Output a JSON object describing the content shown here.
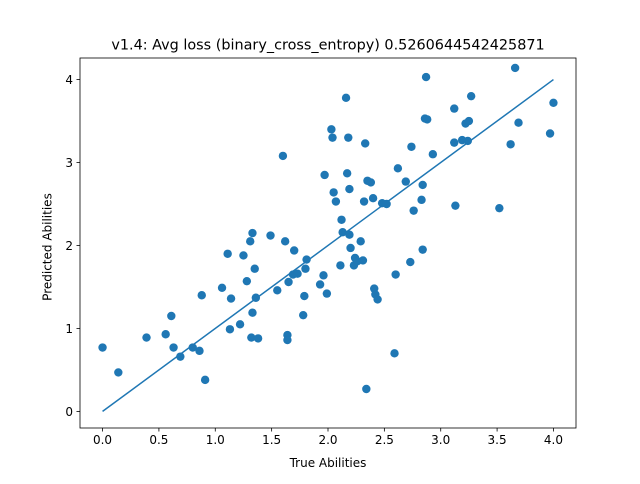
{
  "chart_data": {
    "type": "scatter",
    "title": "v1.4: Avg loss (binary_cross_entropy) 0.5260644542425871",
    "xlabel": "True Abilities",
    "ylabel": "Predicted Abilities",
    "xlim": [
      -0.2,
      4.2
    ],
    "ylim": [
      -0.2,
      4.26
    ],
    "xticks": [
      0.0,
      0.5,
      1.0,
      1.5,
      2.0,
      2.5,
      3.0,
      3.5,
      4.0
    ],
    "xtick_labels": [
      "0.0",
      "0.5",
      "1.0",
      "1.5",
      "2.0",
      "2.5",
      "3.0",
      "3.5",
      "4.0"
    ],
    "yticks": [
      0,
      1,
      2,
      3,
      4
    ],
    "ytick_labels": [
      "0",
      "1",
      "2",
      "3",
      "4"
    ],
    "grid": false,
    "series": [
      {
        "kind": "scatter",
        "color": "#1f77b4",
        "points": [
          [
            0.0,
            0.77
          ],
          [
            0.14,
            0.47
          ],
          [
            0.39,
            0.89
          ],
          [
            0.56,
            0.93
          ],
          [
            0.61,
            1.15
          ],
          [
            0.63,
            0.77
          ],
          [
            0.69,
            0.66
          ],
          [
            0.8,
            0.77
          ],
          [
            0.86,
            0.73
          ],
          [
            0.88,
            1.4
          ],
          [
            0.91,
            0.38
          ],
          [
            1.06,
            1.49
          ],
          [
            1.11,
            1.9
          ],
          [
            1.13,
            0.99
          ],
          [
            1.14,
            1.36
          ],
          [
            1.22,
            1.05
          ],
          [
            1.25,
            1.88
          ],
          [
            1.28,
            1.57
          ],
          [
            1.31,
            2.05
          ],
          [
            1.32,
            0.89
          ],
          [
            1.33,
            1.19
          ],
          [
            1.33,
            2.15
          ],
          [
            1.35,
            1.72
          ],
          [
            1.36,
            1.37
          ],
          [
            1.38,
            0.88
          ],
          [
            1.49,
            2.12
          ],
          [
            1.55,
            1.46
          ],
          [
            1.6,
            3.08
          ],
          [
            1.62,
            2.05
          ],
          [
            1.64,
            0.92
          ],
          [
            1.64,
            0.86
          ],
          [
            1.65,
            1.56
          ],
          [
            1.69,
            1.65
          ],
          [
            1.7,
            1.94
          ],
          [
            1.73,
            1.66
          ],
          [
            1.78,
            1.16
          ],
          [
            1.79,
            1.39
          ],
          [
            1.8,
            1.72
          ],
          [
            1.81,
            1.83
          ],
          [
            1.93,
            1.53
          ],
          [
            1.96,
            1.64
          ],
          [
            1.97,
            2.85
          ],
          [
            1.99,
            1.42
          ],
          [
            2.03,
            3.4
          ],
          [
            2.04,
            3.3
          ],
          [
            2.05,
            2.64
          ],
          [
            2.07,
            2.53
          ],
          [
            2.11,
            1.76
          ],
          [
            2.12,
            2.31
          ],
          [
            2.13,
            2.16
          ],
          [
            2.16,
            3.78
          ],
          [
            2.17,
            2.87
          ],
          [
            2.18,
            3.3
          ],
          [
            2.19,
            2.68
          ],
          [
            2.19,
            2.13
          ],
          [
            2.2,
            1.97
          ],
          [
            2.23,
            1.76
          ],
          [
            2.24,
            1.85
          ],
          [
            2.26,
            1.81
          ],
          [
            2.29,
            2.05
          ],
          [
            2.31,
            1.82
          ],
          [
            2.32,
            2.53
          ],
          [
            2.33,
            3.23
          ],
          [
            2.34,
            0.27
          ],
          [
            2.35,
            2.78
          ],
          [
            2.38,
            2.76
          ],
          [
            2.4,
            2.57
          ],
          [
            2.41,
            1.48
          ],
          [
            2.42,
            1.41
          ],
          [
            2.44,
            1.35
          ],
          [
            2.48,
            2.51
          ],
          [
            2.52,
            2.5
          ],
          [
            2.59,
            0.7
          ],
          [
            2.6,
            1.65
          ],
          [
            2.62,
            2.93
          ],
          [
            2.69,
            2.77
          ],
          [
            2.73,
            1.8
          ],
          [
            2.74,
            3.19
          ],
          [
            2.76,
            2.42
          ],
          [
            2.83,
            2.55
          ],
          [
            2.84,
            1.95
          ],
          [
            2.84,
            2.73
          ],
          [
            2.86,
            3.53
          ],
          [
            2.87,
            4.03
          ],
          [
            2.88,
            3.52
          ],
          [
            2.93,
            3.1
          ],
          [
            3.12,
            3.24
          ],
          [
            3.12,
            3.65
          ],
          [
            3.13,
            2.48
          ],
          [
            3.19,
            3.27
          ],
          [
            3.22,
            3.47
          ],
          [
            3.24,
            3.26
          ],
          [
            3.25,
            3.5
          ],
          [
            3.27,
            3.8
          ],
          [
            3.52,
            2.45
          ],
          [
            3.62,
            3.22
          ],
          [
            3.66,
            4.14
          ],
          [
            3.69,
            3.48
          ],
          [
            3.97,
            3.35
          ],
          [
            4.0,
            3.72
          ]
        ]
      },
      {
        "kind": "line",
        "color": "#1f77b4",
        "points": [
          [
            0.0,
            0.0
          ],
          [
            4.0,
            4.0
          ]
        ]
      }
    ]
  }
}
